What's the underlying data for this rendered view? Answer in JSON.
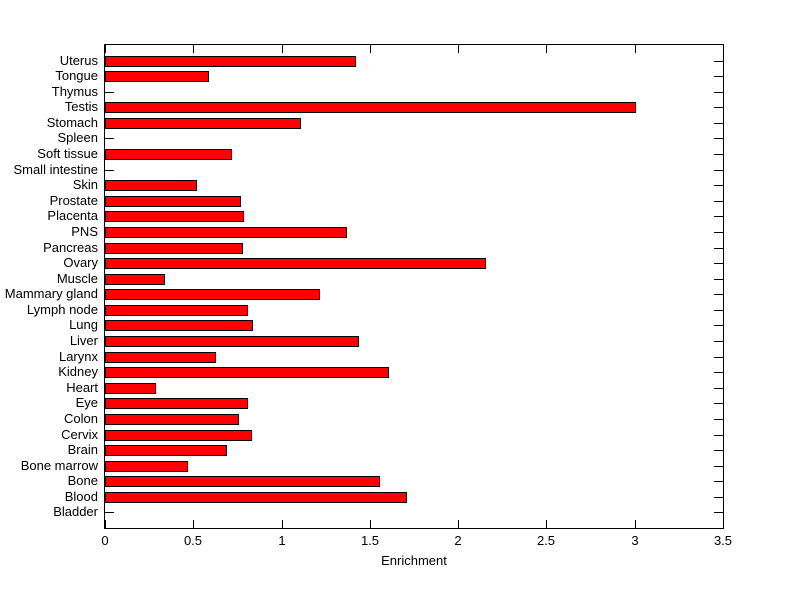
{
  "figure": {
    "background": "#ffffff",
    "axis_color": "#000000"
  },
  "chart_data": {
    "type": "bar",
    "orientation": "horizontal",
    "title": "",
    "xlabel": "Enrichment",
    "ylabel": "",
    "xlim": [
      0,
      3.5
    ],
    "xticks": [
      0,
      0.5,
      1,
      1.5,
      2,
      2.5,
      3,
      3.5
    ],
    "xtick_labels": [
      "0",
      "0.5",
      "1",
      "1.5",
      "2",
      "2.5",
      "3",
      "3.5"
    ],
    "grid": false,
    "legend": null,
    "bar_color": "#ff0000",
    "bar_edge_color": "#000000",
    "categories": [
      "Uterus",
      "Tongue",
      "Thymus",
      "Testis",
      "Stomach",
      "Spleen",
      "Soft tissue",
      "Small intestine",
      "Skin",
      "Prostate",
      "Placenta",
      "PNS",
      "Pancreas",
      "Ovary",
      "Muscle",
      "Mammary gland",
      "Lymph node",
      "Lung",
      "Liver",
      "Larynx",
      "Kidney",
      "Heart",
      "Eye",
      "Colon",
      "Cervix",
      "Brain",
      "Bone marrow",
      "Bone",
      "Blood",
      "Bladder"
    ],
    "values": [
      1.42,
      0.59,
      0,
      3.01,
      1.11,
      0,
      0.72,
      0,
      0.52,
      0.77,
      0.79,
      1.37,
      0.78,
      2.16,
      0.34,
      1.22,
      0.81,
      0.84,
      1.44,
      0.63,
      1.61,
      0.29,
      0.81,
      0.76,
      0.83,
      0.69,
      0.47,
      1.56,
      1.71,
      0
    ]
  }
}
